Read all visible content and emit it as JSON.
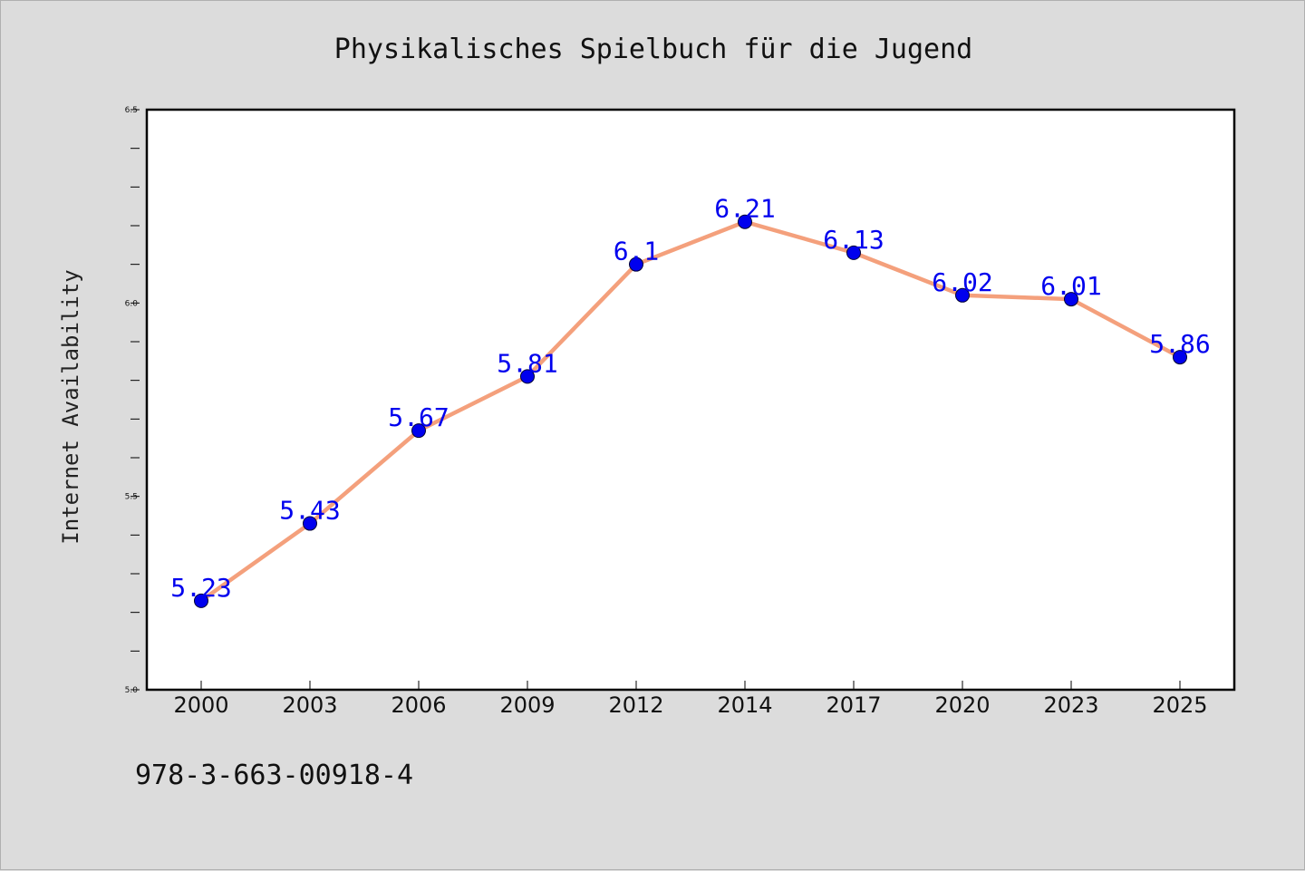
{
  "chart_data": {
    "type": "line",
    "title": "Physikalisches Spielbuch für die Jugend",
    "xlabel": "",
    "ylabel": "Internet Availability",
    "x": [
      "2000",
      "2003",
      "2006",
      "2009",
      "2012",
      "2014",
      "2017",
      "2020",
      "2023",
      "2025"
    ],
    "series": [
      {
        "values": [
          5.23,
          5.43,
          5.67,
          5.81,
          6.1,
          6.21,
          6.13,
          6.02,
          6.01,
          5.86
        ]
      }
    ],
    "data_labels": [
      "5.23",
      "5.43",
      "5.67",
      "5.81",
      "6.1",
      "6.21",
      "6.13",
      "6.02",
      "6.01",
      "5.86"
    ],
    "ylim": [
      5.0,
      6.5
    ],
    "yticks": [
      "5.0",
      "5.5",
      "6.0",
      "6.5"
    ],
    "grid": false,
    "legend": "none",
    "colors": {
      "line": "#f4a07c",
      "marker_fill": "#0000ee",
      "marker_edge": "#000033",
      "label": "#0000ee",
      "background": "#dcdcdc",
      "plot_area": "#ffffff"
    }
  },
  "footer": {
    "isbn": "978-3-663-00918-4"
  }
}
